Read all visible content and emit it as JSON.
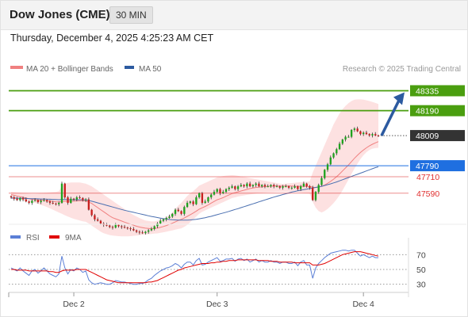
{
  "header": {
    "title": "Dow Jones (CME)",
    "interval": "30 MIN"
  },
  "datetime": "Thursday, December 4, 2025 4:25:23 AM CET",
  "legend": {
    "items": [
      {
        "label": "MA 20 + Bollinger Bands",
        "color": "#f08080"
      },
      {
        "label": "MA 50",
        "color": "#2c5aa0"
      }
    ],
    "rsi_items": [
      {
        "label": "RSI",
        "color": "#5b7fd6"
      },
      {
        "label": "9MA",
        "color": "#e00000"
      }
    ]
  },
  "attribution": "Research © 2025 Trading Central",
  "colors": {
    "resistance": "#4a9e0f",
    "pivot": "#1f6fe0",
    "support": "#e03030",
    "current": "#333333",
    "arrow": "#2c5aa0",
    "bollinger": "#fcd9d9",
    "ma20": "#f08080",
    "ma50": "#4a6fb0",
    "candle_up": "#1fa31f",
    "candle_down": "#c8201f",
    "rsi": "#5b7fd6",
    "rsi_ma": "#e00000"
  },
  "chart_data": [
    {
      "type": "candlestick",
      "title": "Dow Jones (CME)",
      "interval": "30 MIN",
      "x_ticks": [
        "Dec 2",
        "Dec 3",
        "Dec 4"
      ],
      "ylim": [
        47370,
        48430
      ],
      "levels": [
        {
          "value": 48335,
          "label": "48335",
          "kind": "resistance"
        },
        {
          "value": 48190,
          "label": "48190",
          "kind": "resistance"
        },
        {
          "value": 48009,
          "label": "48009",
          "kind": "current"
        },
        {
          "value": 47790,
          "label": "47790",
          "kind": "pivot"
        },
        {
          "value": 47710,
          "label": "47710",
          "kind": "support"
        },
        {
          "value": 47590,
          "label": "47590",
          "kind": "support"
        }
      ],
      "close": [
        47560,
        47550,
        47540,
        47555,
        47545,
        47530,
        47520,
        47535,
        47540,
        47525,
        47535,
        47540,
        47530,
        47520,
        47515,
        47510,
        47520,
        47660,
        47560,
        47520,
        47550,
        47545,
        47560,
        47555,
        47540,
        47545,
        47470,
        47430,
        47400,
        47390,
        47370,
        47360,
        47355,
        47345,
        47340,
        47360,
        47350,
        47345,
        47340,
        47335,
        47330,
        47320,
        47310,
        47305,
        47300,
        47310,
        47320,
        47330,
        47350,
        47370,
        47390,
        47400,
        47410,
        47420,
        47440,
        47470,
        47460,
        47440,
        47490,
        47520,
        47530,
        47510,
        47560,
        47590,
        47520,
        47530,
        47560,
        47580,
        47600,
        47620,
        47590,
        47600,
        47620,
        47630,
        47640,
        47620,
        47640,
        47650,
        47640,
        47660,
        47640,
        47650,
        47660,
        47640,
        47650,
        47640,
        47640,
        47650,
        47640,
        47640,
        47630,
        47640,
        47640,
        47630,
        47630,
        47640,
        47620,
        47640,
        47660,
        47640,
        47630,
        47540,
        47600,
        47650,
        47700,
        47760,
        47800,
        47850,
        47880,
        47910,
        47950,
        47980,
        48000,
        48000,
        48050,
        48060,
        48040,
        48020,
        48030,
        48020,
        48010,
        48020,
        48010,
        48009
      ],
      "ma20": [
        47580,
        47575,
        47570,
        47565,
        47560,
        47555,
        47550,
        47545,
        47545,
        47540,
        47540,
        47538,
        47536,
        47534,
        47530,
        47528,
        47526,
        47530,
        47532,
        47530,
        47532,
        47532,
        47534,
        47536,
        47535,
        47534,
        47526,
        47516,
        47500,
        47485,
        47470,
        47455,
        47440,
        47425,
        47412,
        47404,
        47396,
        47388,
        47380,
        47372,
        47365,
        47358,
        47350,
        47344,
        47340,
        47336,
        47334,
        47332,
        47334,
        47337,
        47342,
        47348,
        47355,
        47363,
        47372,
        47382,
        47392,
        47400,
        47410,
        47422,
        47434,
        47446,
        47460,
        47474,
        47484,
        47494,
        47505,
        47518,
        47530,
        47542,
        47550,
        47558,
        47568,
        47578,
        47588,
        47594,
        47600,
        47606,
        47612,
        47618,
        47624,
        47628,
        47632,
        47634,
        47636,
        47638,
        47640,
        47641,
        47642,
        47642,
        47642,
        47642,
        47642,
        47642,
        47642,
        47641,
        47640,
        47640,
        47640,
        47640,
        47639,
        47634,
        47632,
        47634,
        47640,
        47650,
        47662,
        47676,
        47692,
        47710,
        47730,
        47752,
        47774,
        47796,
        47820,
        47844,
        47866,
        47886,
        47904,
        47920,
        47934,
        47946,
        47956,
        47965
      ],
      "ma50": [
        47555,
        47555,
        47554,
        47554,
        47553,
        47552,
        47551,
        47550,
        47550,
        47549,
        47548,
        47548,
        47547,
        47546,
        47545,
        47544,
        47543,
        47544,
        47544,
        47543,
        47543,
        47543,
        47543,
        47543,
        47542,
        47541,
        47537,
        47532,
        47526,
        47520,
        47514,
        47508,
        47502,
        47496,
        47490,
        47484,
        47478,
        47472,
        47466,
        47461,
        47456,
        47451,
        47446,
        47441,
        47436,
        47431,
        47426,
        47421,
        47417,
        47413,
        47409,
        47405,
        47402,
        47399,
        47397,
        47396,
        47395,
        47394,
        47394,
        47395,
        47396,
        47398,
        47400,
        47404,
        47408,
        47412,
        47417,
        47422,
        47428,
        47434,
        47440,
        47446,
        47452,
        47458,
        47465,
        47472,
        47478,
        47485,
        47492,
        47499,
        47506,
        47513,
        47520,
        47527,
        47534,
        47541,
        47548,
        47555,
        47562,
        47568,
        47574,
        47580,
        47586,
        47592,
        47598,
        47603,
        47608,
        47612,
        47616,
        47620,
        47624,
        47628,
        47632,
        47636,
        47640,
        47646,
        47652,
        47658,
        47665,
        47672,
        47680,
        47688,
        47696,
        47704,
        47712,
        47720,
        47728,
        47736,
        47744,
        47752,
        47760,
        47768,
        47776,
        47782
      ],
      "bb_upper": [
        47600,
        47598,
        47596,
        47594,
        47592,
        47590,
        47588,
        47586,
        47586,
        47588,
        47590,
        47592,
        47594,
        47596,
        47598,
        47600,
        47605,
        47640,
        47660,
        47665,
        47668,
        47668,
        47668,
        47668,
        47664,
        47660,
        47650,
        47640,
        47625,
        47610,
        47595,
        47580,
        47565,
        47550,
        47535,
        47520,
        47505,
        47490,
        47475,
        47460,
        47445,
        47432,
        47420,
        47410,
        47400,
        47392,
        47388,
        47385,
        47385,
        47390,
        47395,
        47405,
        47415,
        47430,
        47450,
        47475,
        47500,
        47520,
        47545,
        47570,
        47590,
        47605,
        47625,
        47645,
        47655,
        47665,
        47675,
        47685,
        47695,
        47705,
        47710,
        47715,
        47718,
        47720,
        47722,
        47720,
        47716,
        47712,
        47708,
        47704,
        47700,
        47696,
        47692,
        47688,
        47684,
        47680,
        47676,
        47672,
        47668,
        47664,
        47660,
        47658,
        47660,
        47662,
        47664,
        47666,
        47668,
        47670,
        47672,
        47674,
        47676,
        47740,
        47790,
        47840,
        47890,
        47940,
        47990,
        48040,
        48090,
        48130,
        48170,
        48200,
        48225,
        48245,
        48260,
        48270,
        48272,
        48272,
        48270,
        48266,
        48260,
        48254,
        48246,
        48238
      ],
      "bb_lower": [
        47550,
        47548,
        47546,
        47544,
        47540,
        47536,
        47530,
        47524,
        47520,
        47512,
        47505,
        47498,
        47490,
        47480,
        47470,
        47460,
        47450,
        47440,
        47430,
        47420,
        47412,
        47404,
        47398,
        47392,
        47386,
        47382,
        47370,
        47355,
        47340,
        47325,
        47310,
        47300,
        47292,
        47286,
        47282,
        47280,
        47278,
        47276,
        47276,
        47276,
        47278,
        47280,
        47282,
        47285,
        47288,
        47290,
        47292,
        47294,
        47296,
        47298,
        47302,
        47306,
        47310,
        47315,
        47320,
        47325,
        47330,
        47335,
        47345,
        47360,
        47380,
        47400,
        47420,
        47440,
        47455,
        47465,
        47475,
        47485,
        47495,
        47505,
        47515,
        47525,
        47535,
        47545,
        47555,
        47560,
        47566,
        47570,
        47574,
        47578,
        47582,
        47585,
        47588,
        47590,
        47592,
        47594,
        47595,
        47596,
        47597,
        47598,
        47598,
        47598,
        47598,
        47598,
        47598,
        47597,
        47596,
        47594,
        47592,
        47590,
        47588,
        47528,
        47485,
        47460,
        47450,
        47460,
        47476,
        47496,
        47518,
        47545,
        47575,
        47610,
        47650,
        47690,
        47730,
        47770,
        47805,
        47838,
        47866,
        47888,
        47904,
        47914,
        47918,
        47920
      ]
    },
    {
      "type": "line",
      "title": "RSI",
      "x_ticks": [
        "Dec 2",
        "Dec 3",
        "Dec 4"
      ],
      "y_ticks": [
        70,
        50,
        30
      ],
      "ylim": [
        20,
        80
      ],
      "series": [
        {
          "name": "RSI",
          "values": [
            52,
            50,
            48,
            52,
            48,
            45,
            42,
            48,
            50,
            45,
            48,
            52,
            48,
            44,
            42,
            40,
            44,
            68,
            52,
            44,
            50,
            48,
            52,
            50,
            46,
            48,
            36,
            32,
            30,
            31,
            32,
            31,
            30,
            30,
            32,
            35,
            34,
            33,
            33,
            32,
            31,
            30,
            30,
            31,
            31,
            33,
            36,
            38,
            42,
            45,
            48,
            50,
            52,
            53,
            55,
            58,
            56,
            52,
            57,
            60,
            60,
            56,
            62,
            65,
            56,
            57,
            60,
            62,
            64,
            66,
            61,
            62,
            64,
            64,
            65,
            61,
            64,
            65,
            62,
            64,
            60,
            62,
            64,
            60,
            62,
            60,
            60,
            62,
            60,
            60,
            58,
            60,
            60,
            58,
            58,
            60,
            55,
            60,
            62,
            56,
            56,
            38,
            52,
            58,
            62,
            66,
            69,
            72,
            73,
            74,
            75,
            76,
            76,
            75,
            76,
            76,
            72,
            68,
            70,
            68,
            66,
            68,
            66,
            66
          ]
        },
        {
          "name": "9MA",
          "values": [
            50,
            50,
            49,
            49,
            49,
            49,
            48,
            48,
            48,
            48,
            48,
            48,
            48,
            47,
            47,
            46,
            46,
            48,
            49,
            49,
            49,
            49,
            50,
            50,
            50,
            50,
            48,
            46,
            44,
            42,
            40,
            38,
            36,
            35,
            34,
            33,
            32,
            32,
            32,
            32,
            32,
            32,
            32,
            32,
            32,
            32,
            33,
            33,
            34,
            35,
            37,
            39,
            41,
            43,
            45,
            47,
            49,
            50,
            52,
            53,
            54,
            55,
            56,
            57,
            58,
            58,
            58,
            59,
            59,
            60,
            60,
            61,
            61,
            62,
            62,
            62,
            63,
            63,
            63,
            63,
            63,
            63,
            63,
            62,
            62,
            62,
            62,
            61,
            61,
            61,
            60,
            60,
            60,
            60,
            60,
            59,
            59,
            59,
            59,
            59,
            59,
            56,
            56,
            56,
            57,
            58,
            60,
            62,
            64,
            66,
            68,
            70,
            71,
            72,
            73,
            74,
            74,
            74,
            73,
            72,
            71,
            70,
            69,
            68
          ]
        }
      ]
    }
  ]
}
